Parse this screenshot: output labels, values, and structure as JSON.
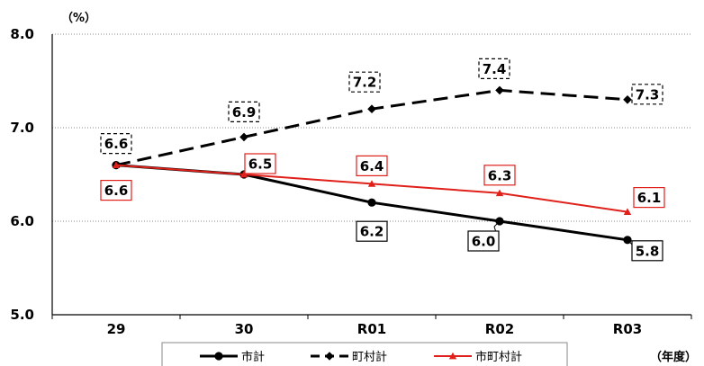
{
  "chart_data": {
    "type": "line",
    "y_unit": "（%）",
    "x_unit": "（年度）",
    "categories": [
      "29",
      "30",
      "R01",
      "R02",
      "R03"
    ],
    "ylim": [
      5.0,
      8.0
    ],
    "y_ticks": [
      "5.0",
      "6.0",
      "7.0",
      "8.0"
    ],
    "grid": true,
    "legend_position": "bottom",
    "series": [
      {
        "name": "市計",
        "values": [
          6.6,
          6.5,
          6.2,
          6.0,
          5.8
        ],
        "labels": [
          "",
          "",
          "6.2",
          "6.0",
          "5.8"
        ],
        "color": "#000000",
        "style": "solid",
        "marker": "circle"
      },
      {
        "name": "町村計",
        "values": [
          6.6,
          6.9,
          7.2,
          7.4,
          7.3
        ],
        "labels": [
          "6.6",
          "6.9",
          "7.2",
          "7.4",
          "7.3"
        ],
        "color": "#000000",
        "style": "dashed",
        "marker": "diamond"
      },
      {
        "name": "市町村計",
        "values": [
          6.6,
          6.5,
          6.4,
          6.3,
          6.1
        ],
        "labels": [
          "6.6",
          "6.5",
          "6.4",
          "6.3",
          "6.1"
        ],
        "color": "#e0201a",
        "style": "solid",
        "marker": "triangle"
      }
    ]
  }
}
